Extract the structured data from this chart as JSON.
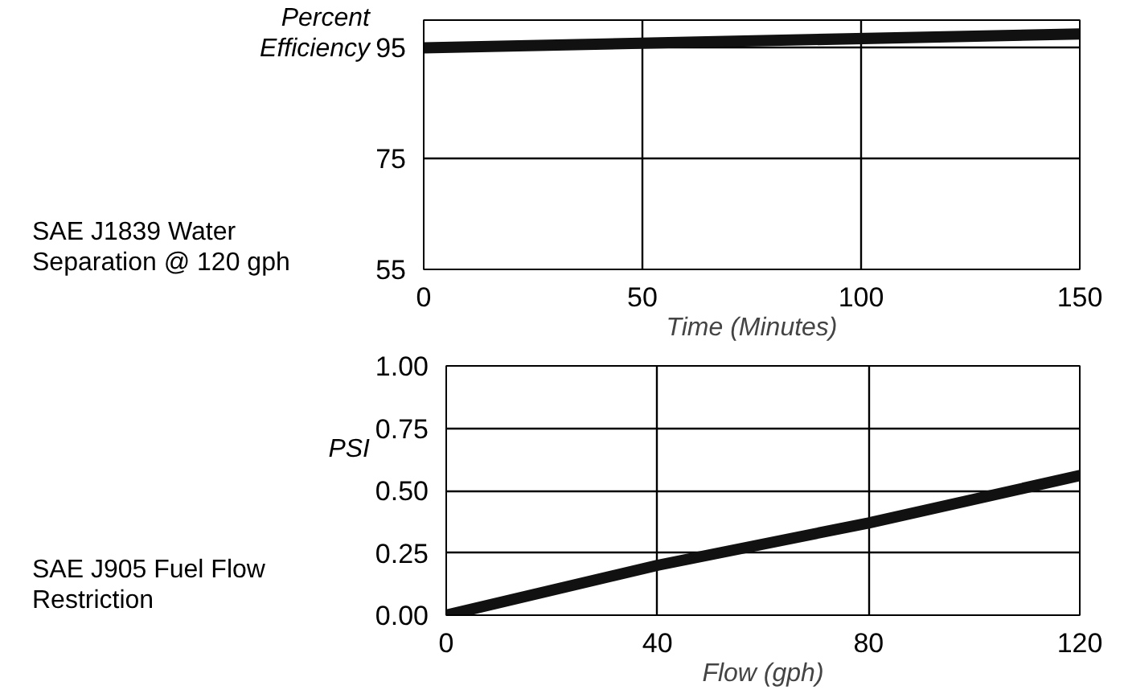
{
  "chart_data": [
    {
      "type": "line",
      "title": "SAE J1839 Water Separation @ 120 gph",
      "ylabel": "Percent Efficiency",
      "xlabel": "Time (Minutes)",
      "x": [
        0,
        150
      ],
      "series": [
        {
          "color": "#111111",
          "values": [
            95,
            97.5
          ]
        }
      ],
      "xlim": [
        0,
        150
      ],
      "xticks": [
        0,
        50,
        100,
        150
      ],
      "ylim": [
        55,
        100
      ],
      "yticks": [
        55,
        75,
        95
      ],
      "grid": true
    },
    {
      "type": "line",
      "title": "SAE J905 Fuel Flow Restriction",
      "ylabel": "PSI",
      "xlabel": "Flow (gph)",
      "x": [
        0,
        40,
        80,
        120
      ],
      "series": [
        {
          "color": "#111111",
          "values": [
            0,
            0.2,
            0.37,
            0.56
          ]
        }
      ],
      "xlim": [
        0,
        120
      ],
      "xticks": [
        0,
        40,
        80,
        120
      ],
      "ylim": [
        0,
        1
      ],
      "yticks": [
        {
          "value": 0,
          "label": "0.00"
        },
        {
          "value": 0.25,
          "label": "0.25"
        },
        {
          "value": 0.5,
          "label": "0.50"
        },
        {
          "value": 0.75,
          "label": "0.75"
        },
        {
          "value": 1,
          "label": "1.00"
        }
      ],
      "grid": true
    }
  ]
}
